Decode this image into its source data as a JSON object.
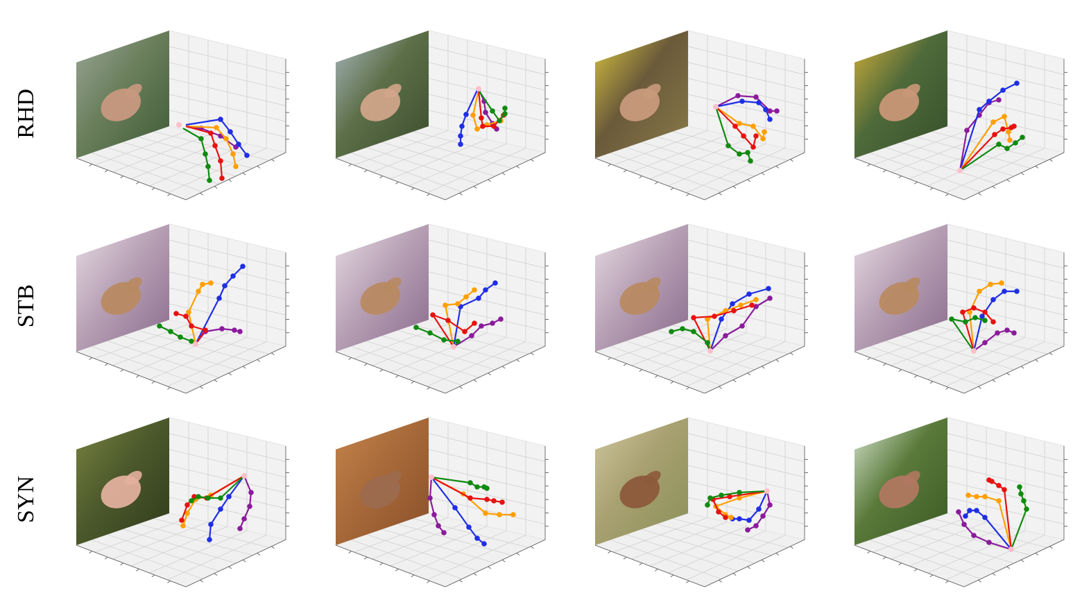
{
  "figure": {
    "rows": [
      {
        "label": "RHD",
        "panels": [
          {
            "photo": "outdoor-avatar-gesture",
            "bg": [
              "#6b7f5c",
              "#3f5a36",
              "#9aa79a"
            ],
            "hand": "#c8997f"
          },
          {
            "photo": "hand-over-town",
            "bg": [
              "#5d6f48",
              "#3b4c2e",
              "#a9b8c0"
            ],
            "hand": "#d0a58a"
          },
          {
            "photo": "yellow-jacket-fist",
            "bg": [
              "#6b5a3a",
              "#8a7a4a",
              "#d9c640"
            ],
            "hand": "#c89a7c"
          },
          {
            "photo": "finger-to-mouth",
            "bg": [
              "#4f6a3a",
              "#35502a",
              "#d6b13a"
            ],
            "hand": "#c99777"
          }
        ]
      },
      {
        "label": "STB",
        "panels": [
          {
            "photo": "floral-victory-sign",
            "bg": [
              "#b8a2b6",
              "#8a6b8c",
              "#e7dbe4"
            ],
            "hand": "#b88a62"
          },
          {
            "photo": "floral-pointing",
            "bg": [
              "#b8a2b6",
              "#8a6b8c",
              "#e7dbe4"
            ],
            "hand": "#b88a62"
          },
          {
            "photo": "floral-curled",
            "bg": [
              "#b8a2b6",
              "#8a6b8c",
              "#e7dbe4"
            ],
            "hand": "#b88a62"
          },
          {
            "photo": "floral-victory-sign-2",
            "bg": [
              "#b8a2b6",
              "#8a6b8c",
              "#e7dbe4"
            ],
            "hand": "#b88a62"
          }
        ]
      },
      {
        "label": "SYN",
        "panels": [
          {
            "photo": "grass-reaching",
            "bg": [
              "#4d5a2c",
              "#2f3a1a",
              "#7a8440"
            ],
            "hand": "#e2b09c"
          },
          {
            "photo": "wood-open-hand",
            "bg": [
              "#a86a3a",
              "#8a5028",
              "#c4844c"
            ],
            "hand": "#9c6a4e"
          },
          {
            "photo": "dry-grass-pinch",
            "bg": [
              "#a8a070",
              "#8a9058",
              "#cfc8a0"
            ],
            "hand": "#8c5a3c"
          },
          {
            "photo": "trees-back-of-hand",
            "bg": [
              "#5a7a3a",
              "#3a5a26",
              "#d8e4d0"
            ],
            "hand": "#b07860"
          }
        ]
      }
    ],
    "legend_colors": {
      "wrist": "#ffc0cb",
      "thumb": "#8b1a9c",
      "index": "#1f2ee6",
      "middle": "#ff9f00",
      "ring": "#e8110f",
      "little": "#0f8a0f"
    }
  }
}
